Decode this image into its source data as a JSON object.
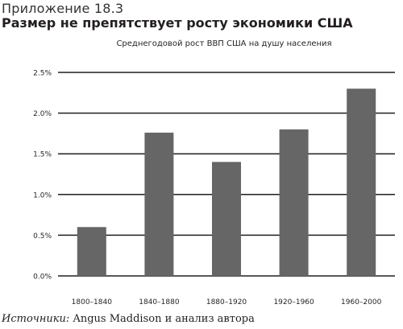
{
  "header": {
    "appendix": "Приложение 18.3",
    "title": "Размер не препятствует росту экономики США"
  },
  "source": {
    "label": "Источники:",
    "text": " Angus Maddison и анализ автора"
  },
  "chart_data": {
    "type": "bar",
    "title": "Среднегодовой рост ВВП США на душу населения",
    "xlabel": "",
    "ylabel": "",
    "categories": [
      "1800–1840",
      "1840–1880",
      "1880–1920",
      "1920–1960",
      "1960–2000"
    ],
    "values": [
      0.6,
      1.76,
      1.4,
      1.8,
      2.3
    ],
    "ylim": [
      0,
      2.5
    ],
    "yticks": [
      0.0,
      0.5,
      1.0,
      1.5,
      2.0,
      2.5
    ],
    "ytick_labels": [
      "0.0%",
      "0.5%",
      "1.0%",
      "1.5%",
      "2.0%",
      "2.5%"
    ],
    "grid": true,
    "bar_color": "#666666",
    "grid_color": "#231f20"
  }
}
